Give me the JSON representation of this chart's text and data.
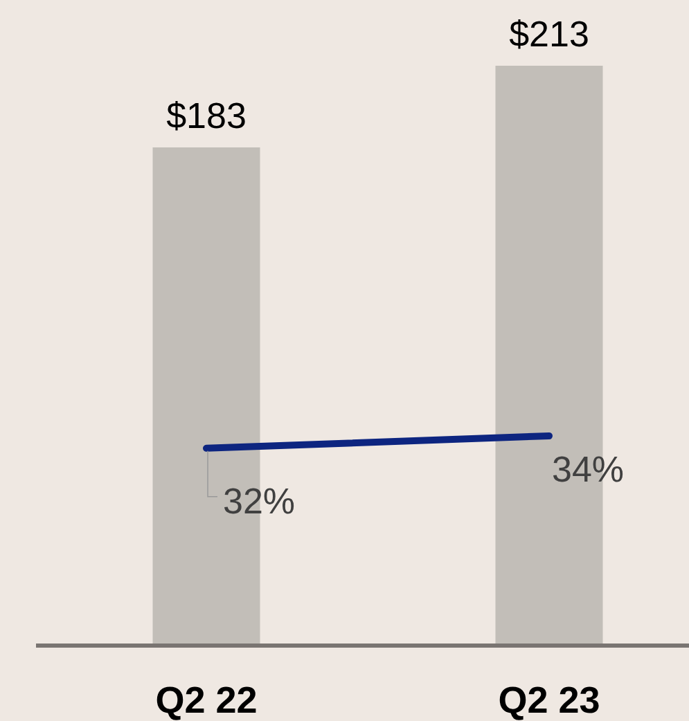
{
  "chart_data": {
    "type": "bar",
    "categories": [
      "Q2 22",
      "Q2 23"
    ],
    "series": [
      {
        "color": "#c2beb8",
        "values": [
          183,
          213
        ],
        "value_labels": [
          "$183",
          "$213"
        ]
      },
      {
        "type": "line",
        "axis": "y2",
        "color": "#0d2580",
        "values": [
          32,
          34
        ],
        "value_labels": [
          "32%",
          "34%"
        ]
      }
    ],
    "tick_labels": "x"
  }
}
